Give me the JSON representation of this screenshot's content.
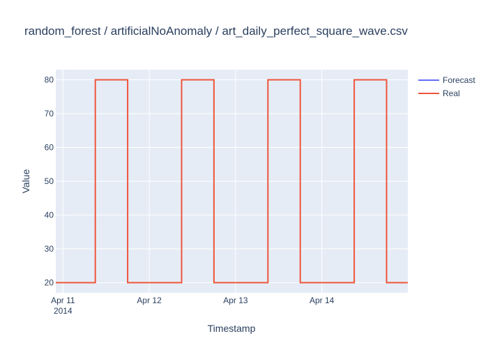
{
  "colors": {
    "plot_bg": "#e5ecf6",
    "grid": "#ffffff",
    "text": "#2a3f5f",
    "forecast": "#636efa",
    "real": "#ef553b"
  },
  "chart_data": {
    "type": "line",
    "title": "random_forest / artificialNoAnomaly / art_daily_perfect_square_wave.csv",
    "xlabel": "Timestamp",
    "ylabel": "Value",
    "x_range": [
      "2014-04-10 22:00",
      "2014-04-14 23:55"
    ],
    "ylim": [
      17,
      83
    ],
    "y_ticks": [
      20,
      30,
      40,
      50,
      60,
      70,
      80
    ],
    "x_ticks": [
      {
        "t": "2014-04-11 00:00",
        "label": "Apr 11",
        "sublabel": "2014"
      },
      {
        "t": "2014-04-12 00:00",
        "label": "Apr 12",
        "sublabel": ""
      },
      {
        "t": "2014-04-13 00:00",
        "label": "Apr 13",
        "sublabel": ""
      },
      {
        "t": "2014-04-14 00:00",
        "label": "Apr 14",
        "sublabel": ""
      }
    ],
    "grid": true,
    "legend_position": "top-right",
    "series": [
      {
        "name": "Forecast",
        "color": "#636efa",
        "points": []
      },
      {
        "name": "Real",
        "color": "#ef553b",
        "step": true,
        "points": [
          {
            "t": "2014-04-10 22:00",
            "v": 20
          },
          {
            "t": "2014-04-11 09:00",
            "v": 80
          },
          {
            "t": "2014-04-11 18:00",
            "v": 20
          },
          {
            "t": "2014-04-12 09:00",
            "v": 80
          },
          {
            "t": "2014-04-12 18:00",
            "v": 20
          },
          {
            "t": "2014-04-13 09:00",
            "v": 80
          },
          {
            "t": "2014-04-13 18:00",
            "v": 20
          },
          {
            "t": "2014-04-14 09:00",
            "v": 80
          },
          {
            "t": "2014-04-14 18:00",
            "v": 20
          },
          {
            "t": "2014-04-14 23:55",
            "v": 20
          }
        ]
      }
    ]
  }
}
